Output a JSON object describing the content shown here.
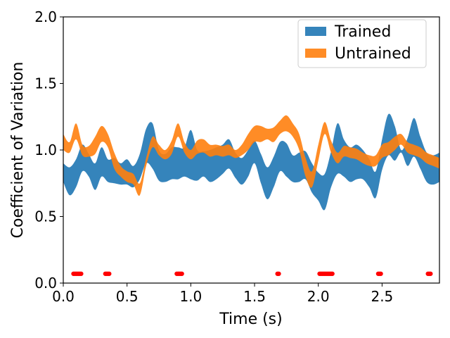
{
  "chart_data": {
    "type": "area",
    "xlabel": "Time (s)",
    "ylabel": "Coefficient of Variation",
    "xlim": [
      0,
      2.95
    ],
    "ylim": [
      0,
      2.0
    ],
    "x_ticks": [
      "0.0",
      "0.5",
      "1.0",
      "1.5",
      "2.0",
      "2.5"
    ],
    "y_ticks": [
      "0.0",
      "0.5",
      "1.0",
      "1.5",
      "2.0"
    ],
    "grid": false,
    "legend_position": "top-right",
    "series": [
      {
        "name": "Trained",
        "color": "#1f77b4",
        "x": [
          0.0,
          0.05,
          0.1,
          0.15,
          0.2,
          0.25,
          0.3,
          0.35,
          0.4,
          0.45,
          0.5,
          0.55,
          0.6,
          0.65,
          0.7,
          0.75,
          0.8,
          0.85,
          0.9,
          0.95,
          1.0,
          1.05,
          1.1,
          1.15,
          1.2,
          1.25,
          1.3,
          1.35,
          1.4,
          1.45,
          1.5,
          1.55,
          1.6,
          1.65,
          1.7,
          1.75,
          1.8,
          1.85,
          1.9,
          1.95,
          2.0,
          2.05,
          2.1,
          2.15,
          2.2,
          2.25,
          2.3,
          2.35,
          2.4,
          2.45,
          2.5,
          2.55,
          2.6,
          2.65,
          2.7,
          2.75,
          2.8,
          2.85,
          2.9,
          2.95
        ],
        "lower": [
          0.76,
          0.66,
          0.72,
          0.84,
          0.8,
          0.7,
          0.8,
          0.76,
          0.75,
          0.74,
          0.74,
          0.72,
          0.78,
          0.9,
          0.86,
          0.77,
          0.76,
          0.78,
          0.78,
          0.8,
          0.78,
          0.77,
          0.8,
          0.76,
          0.78,
          0.82,
          0.86,
          0.79,
          0.74,
          0.8,
          0.9,
          0.75,
          0.63,
          0.72,
          0.84,
          0.8,
          0.76,
          0.76,
          0.78,
          0.68,
          0.62,
          0.55,
          0.72,
          0.82,
          0.8,
          0.76,
          0.78,
          0.78,
          0.72,
          0.64,
          0.85,
          0.96,
          0.92,
          0.98,
          0.88,
          0.95,
          0.86,
          0.76,
          0.74,
          0.76
        ],
        "upper": [
          0.9,
          0.87,
          0.93,
          1.04,
          0.97,
          0.9,
          1.02,
          0.93,
          0.94,
          0.9,
          0.93,
          0.88,
          0.97,
          1.16,
          1.2,
          1.0,
          0.97,
          1.02,
          1.02,
          1.02,
          1.15,
          1.0,
          0.99,
          1.0,
          1.02,
          1.04,
          1.08,
          0.98,
          0.94,
          1.0,
          1.07,
          0.97,
          0.87,
          0.95,
          1.06,
          1.05,
          0.96,
          0.98,
          0.99,
          0.9,
          0.83,
          0.82,
          0.99,
          1.2,
          1.08,
          1.02,
          1.04,
          1.0,
          0.93,
          0.84,
          1.08,
          1.27,
          1.18,
          1.0,
          1.09,
          1.24,
          1.1,
          0.98,
          0.96,
          0.98
        ]
      },
      {
        "name": "Untrained",
        "color": "#ff7f0e",
        "x": [
          0.0,
          0.05,
          0.1,
          0.15,
          0.2,
          0.25,
          0.3,
          0.35,
          0.4,
          0.45,
          0.5,
          0.55,
          0.6,
          0.65,
          0.7,
          0.75,
          0.8,
          0.85,
          0.9,
          0.95,
          1.0,
          1.05,
          1.1,
          1.15,
          1.2,
          1.25,
          1.3,
          1.35,
          1.4,
          1.45,
          1.5,
          1.55,
          1.6,
          1.65,
          1.7,
          1.75,
          1.8,
          1.85,
          1.9,
          1.95,
          2.0,
          2.05,
          2.1,
          2.15,
          2.2,
          2.25,
          2.3,
          2.35,
          2.4,
          2.45,
          2.5,
          2.55,
          2.6,
          2.65,
          2.7,
          2.75,
          2.8,
          2.85,
          2.9,
          2.95
        ],
        "lower": [
          1.0,
          0.98,
          1.08,
          0.96,
          0.95,
          0.97,
          1.06,
          1.02,
          0.86,
          0.8,
          0.76,
          0.74,
          0.66,
          0.88,
          1.02,
          0.96,
          0.93,
          0.97,
          1.1,
          0.98,
          0.93,
          0.97,
          0.98,
          0.95,
          0.96,
          0.95,
          0.96,
          0.94,
          0.96,
          1.0,
          1.06,
          1.06,
          1.08,
          1.06,
          1.12,
          1.14,
          1.1,
          1.0,
          0.8,
          0.72,
          0.92,
          1.12,
          0.98,
          0.9,
          0.95,
          0.94,
          0.93,
          0.9,
          0.88,
          0.88,
          0.94,
          0.96,
          1.0,
          1.04,
          0.98,
          0.96,
          0.94,
          0.9,
          0.88,
          0.86
        ],
        "upper": [
          1.12,
          1.06,
          1.2,
          1.04,
          1.03,
          1.1,
          1.18,
          1.12,
          0.98,
          0.88,
          0.84,
          0.82,
          0.75,
          0.94,
          1.1,
          1.04,
          1.0,
          1.07,
          1.2,
          1.06,
          1.0,
          1.07,
          1.08,
          1.04,
          1.04,
          1.03,
          1.04,
          1.0,
          1.04,
          1.12,
          1.18,
          1.18,
          1.16,
          1.17,
          1.22,
          1.26,
          1.2,
          1.12,
          0.94,
          0.84,
          1.04,
          1.21,
          1.07,
          0.98,
          1.03,
          1.02,
          1.01,
          0.98,
          0.96,
          0.96,
          1.04,
          1.06,
          1.1,
          1.12,
          1.06,
          1.04,
          1.02,
          0.98,
          0.96,
          0.94
        ]
      },
      {
        "name": "",
        "type": "scatter",
        "color": "#ff0000",
        "x": [
          0.08,
          0.09,
          0.1,
          0.11,
          0.12,
          0.13,
          0.14,
          0.33,
          0.34,
          0.35,
          0.36,
          0.89,
          0.9,
          0.91,
          0.92,
          0.93,
          1.68,
          1.69,
          2.01,
          2.02,
          2.03,
          2.04,
          2.05,
          2.06,
          2.07,
          2.08,
          2.09,
          2.1,
          2.11,
          2.47,
          2.48,
          2.49,
          2.86,
          2.87,
          2.88
        ],
        "y": [
          0.07,
          0.07,
          0.07,
          0.07,
          0.07,
          0.07,
          0.07,
          0.07,
          0.07,
          0.07,
          0.07,
          0.07,
          0.07,
          0.07,
          0.07,
          0.07,
          0.07,
          0.07,
          0.07,
          0.07,
          0.07,
          0.07,
          0.07,
          0.07,
          0.07,
          0.07,
          0.07,
          0.07,
          0.07,
          0.07,
          0.07,
          0.07,
          0.07,
          0.07,
          0.07
        ]
      }
    ]
  }
}
